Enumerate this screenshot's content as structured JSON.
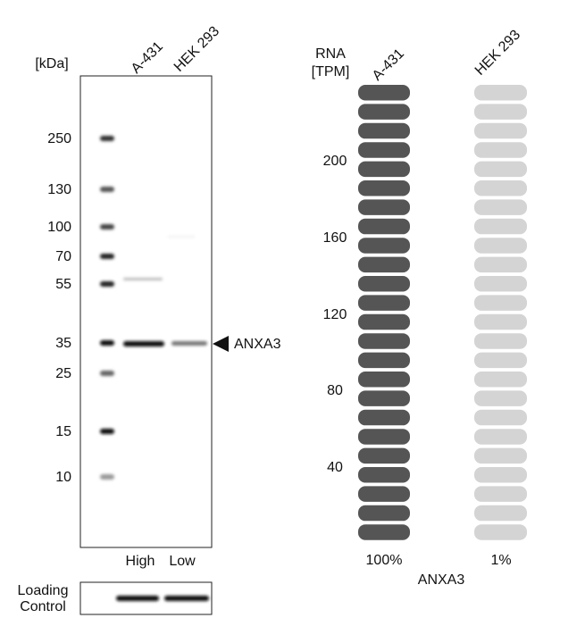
{
  "western_blot": {
    "unit_label": "[kDa]",
    "samples": [
      "A-431",
      "HEK 293"
    ],
    "markers": [
      "250",
      "130",
      "100",
      "70",
      "55",
      "35",
      "25",
      "15",
      "10"
    ],
    "target": "ANXA3",
    "levels": [
      "High",
      "Low"
    ],
    "loading_control": [
      "Loading",
      "Control"
    ]
  },
  "rna": {
    "unit_label": [
      "RNA",
      "[TPM]"
    ],
    "samples": [
      "A-431",
      "HEK 293"
    ],
    "ticks": [
      "200",
      "160",
      "120",
      "80",
      "40"
    ],
    "percentages": [
      "100%",
      "1%"
    ],
    "gene": "ANXA3"
  }
}
